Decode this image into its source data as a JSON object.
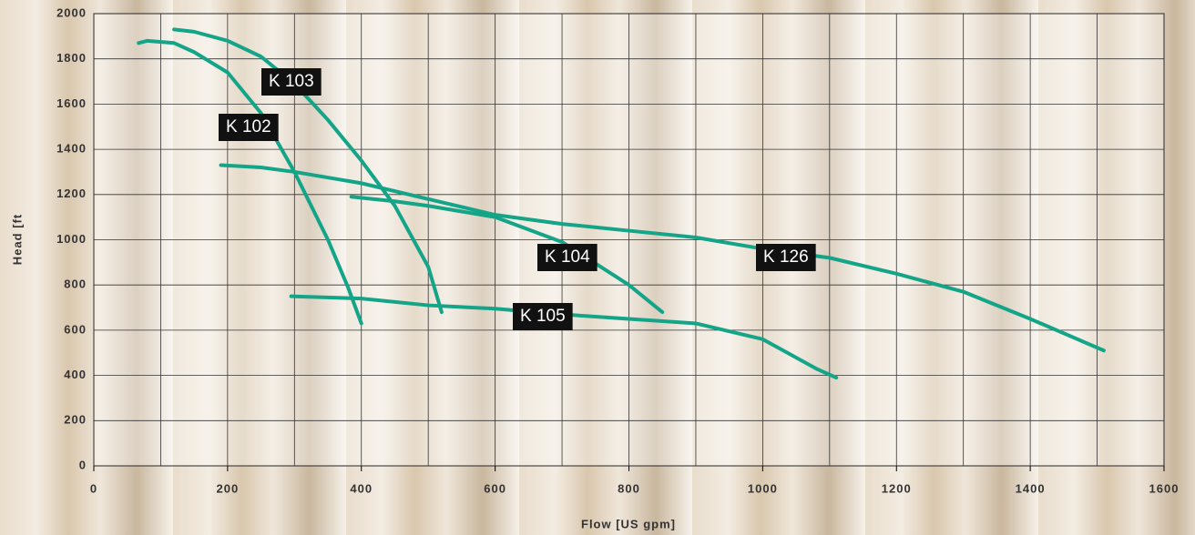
{
  "chart_data": {
    "type": "line",
    "xlabel": "Flow [US gpm]",
    "ylabel": "Head [ft",
    "xlim": [
      0,
      1600
    ],
    "ylim": [
      0,
      2000
    ],
    "xticks": [
      0,
      200,
      400,
      600,
      800,
      1000,
      1200,
      1400,
      1600
    ],
    "yticks": [
      0,
      200,
      400,
      600,
      800,
      1000,
      1200,
      1400,
      1600,
      1800,
      2000
    ],
    "grid": true,
    "series": [
      {
        "name": "K 102",
        "color": "#14a487",
        "x": [
          67,
          80,
          120,
          150,
          200,
          250,
          300,
          350,
          380,
          400
        ],
        "values": [
          1870,
          1880,
          1870,
          1830,
          1740,
          1560,
          1300,
          1000,
          790,
          630
        ]
      },
      {
        "name": "K 103",
        "color": "#14a487",
        "x": [
          120,
          150,
          200,
          250,
          300,
          350,
          400,
          450,
          500,
          520
        ],
        "values": [
          1930,
          1920,
          1880,
          1810,
          1690,
          1530,
          1350,
          1150,
          880,
          680
        ]
      },
      {
        "name": "K 104",
        "color": "#14a487",
        "x": [
          385,
          450,
          500,
          600,
          700,
          800,
          850
        ],
        "values": [
          1190,
          1170,
          1150,
          1100,
          990,
          800,
          680
        ]
      },
      {
        "name": "K 105",
        "color": "#14a487",
        "x": [
          295,
          400,
          500,
          600,
          700,
          800,
          900,
          1000,
          1080,
          1110
        ],
        "values": [
          750,
          740,
          710,
          695,
          670,
          650,
          630,
          560,
          430,
          390
        ]
      },
      {
        "name": "K 126",
        "color": "#14a487",
        "x": [
          190,
          250,
          300,
          400,
          500,
          600,
          700,
          800,
          900,
          1000,
          1100,
          1200,
          1300,
          1400,
          1510
        ],
        "values": [
          1330,
          1320,
          1300,
          1250,
          1180,
          1110,
          1070,
          1040,
          1010,
          960,
          920,
          850,
          770,
          650,
          510
        ]
      }
    ]
  }
}
